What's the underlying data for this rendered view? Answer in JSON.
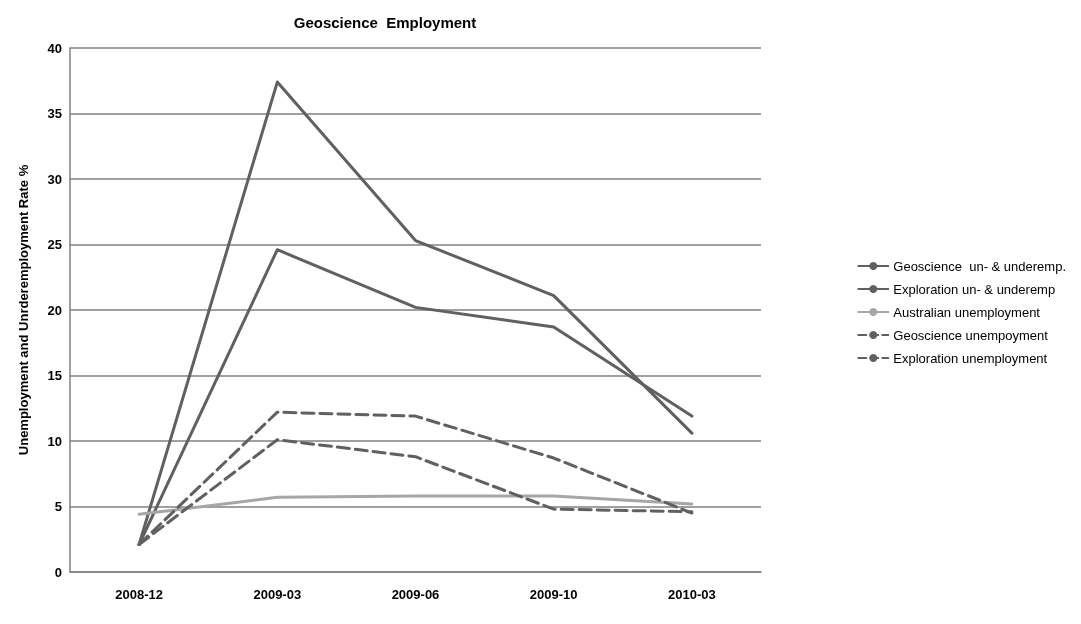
{
  "chart_data": {
    "type": "line",
    "title": "Geoscience  Employment",
    "ylabel": "Unemployment and Unrderemployment Rate %",
    "categories": [
      "2008-12",
      "2009-03",
      "2009-06",
      "2009-10",
      "2010-03"
    ],
    "series": [
      {
        "name": "Geoscience  un- & underemp.",
        "color": "#606060",
        "line_style": "solid",
        "values": [
          2.1,
          37.4,
          25.3,
          21.1,
          10.6
        ]
      },
      {
        "name": "Exploration un- & underemp",
        "color": "#606060",
        "line_style": "solid",
        "values": [
          2.1,
          24.6,
          20.2,
          18.7,
          11.9
        ]
      },
      {
        "name": "Australian unemployment",
        "color": "#a6a6a6",
        "line_style": "solid",
        "values": [
          4.4,
          5.7,
          5.8,
          5.8,
          5.2
        ]
      },
      {
        "name": "Geoscience unempoyment",
        "color": "#606060",
        "line_style": "dashed",
        "values": [
          2.1,
          12.2,
          11.9,
          8.7,
          4.5
        ]
      },
      {
        "name": "Exploration unemployment",
        "color": "#606060",
        "line_style": "dashed",
        "values": [
          2.1,
          10.1,
          8.8,
          4.8,
          4.6
        ]
      }
    ],
    "ylim": [
      0,
      40
    ],
    "yticks": [
      0,
      5,
      10,
      15,
      20,
      25,
      30,
      35,
      40
    ],
    "grid": "y",
    "legend": "right",
    "marker": "none"
  }
}
